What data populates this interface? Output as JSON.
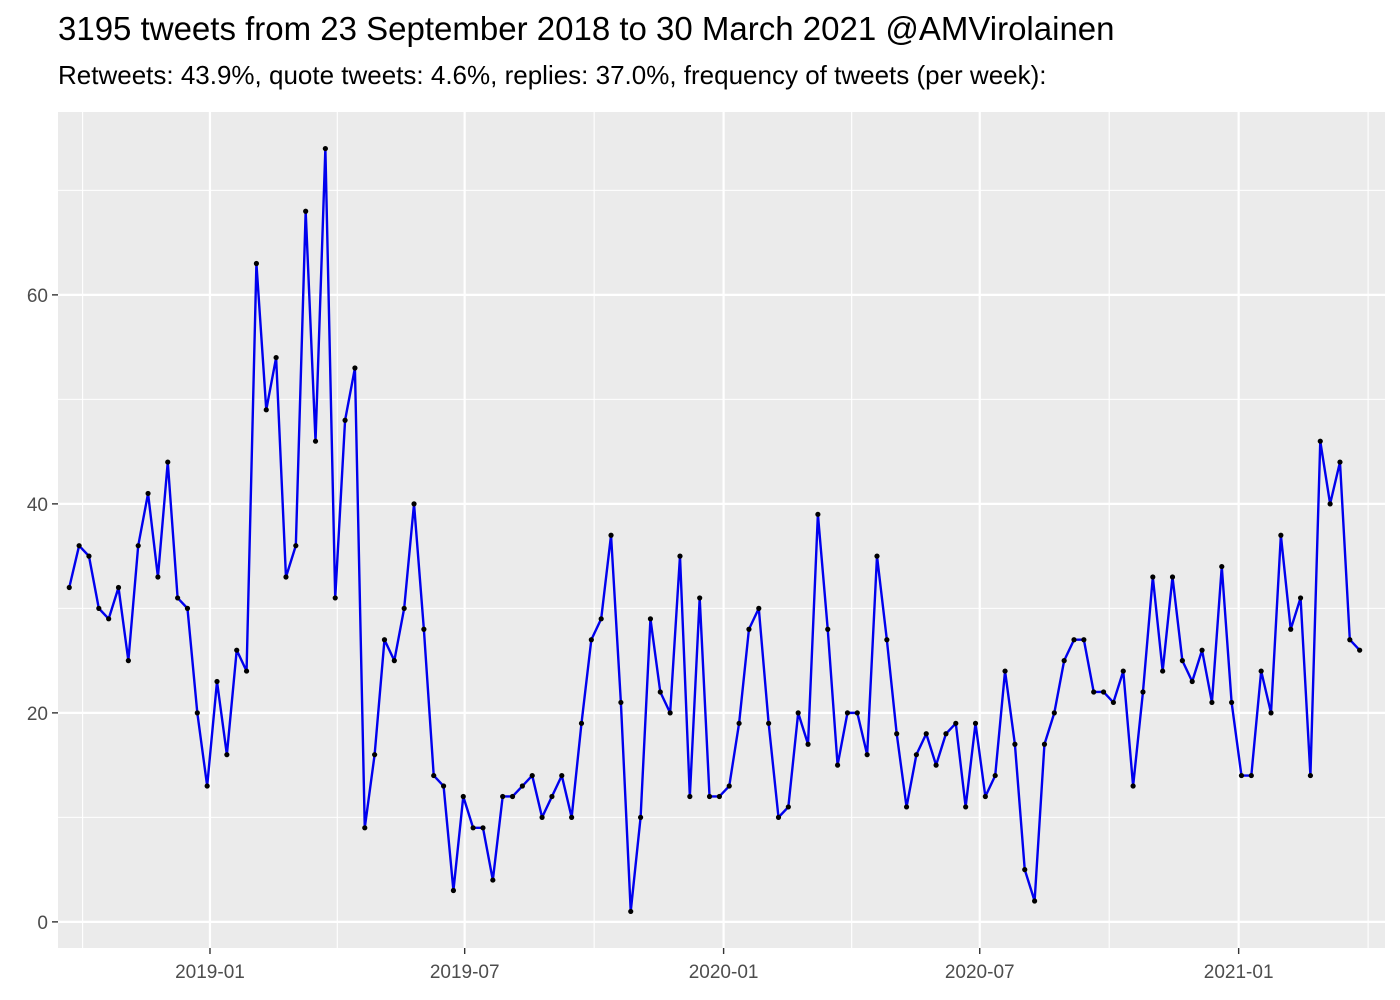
{
  "title": "3195 tweets from 23 September 2018 to 30 March 2021 @AMVirolainen",
  "subtitle": "Retweets: 43.9%, quote tweets: 4.6%, replies: 37.0%, frequency of tweets (per week):",
  "colors": {
    "panel_background": "#ebebeb",
    "grid_major": "#ffffff",
    "line": "#0000ee",
    "points": "#000000",
    "tick_text": "#4d4d4d"
  },
  "chart_data": {
    "type": "line",
    "title": "3195 tweets from 23 September 2018 to 30 March 2021 @AMVirolainen",
    "subtitle": "Retweets: 43.9%, quote tweets: 4.6%, replies: 37.0%, frequency of tweets (per week):",
    "xlabel": "",
    "ylabel": "",
    "x_ticks": [
      "2019-01",
      "2019-07",
      "2020-01",
      "2020-07",
      "2021-01"
    ],
    "y_ticks": [
      0,
      20,
      40,
      60
    ],
    "ylim": [
      -2.5,
      77.5
    ],
    "xlim": [
      "2018-09-15",
      "2021-04-15"
    ],
    "grid": true,
    "series": [
      {
        "x": [
          "2018-09-23",
          "2018-09-30",
          "2018-10-07",
          "2018-10-14",
          "2018-10-21",
          "2018-10-28",
          "2018-11-04",
          "2018-11-11",
          "2018-11-18",
          "2018-11-25",
          "2018-12-02",
          "2018-12-09",
          "2018-12-16",
          "2018-12-23",
          "2018-12-30",
          "2019-01-06",
          "2019-01-13",
          "2019-01-20",
          "2019-01-27",
          "2019-02-03",
          "2019-02-10",
          "2019-02-17",
          "2019-02-24",
          "2019-03-03",
          "2019-03-10",
          "2019-03-17",
          "2019-03-24",
          "2019-03-31",
          "2019-04-07",
          "2019-04-14",
          "2019-04-21",
          "2019-04-28",
          "2019-05-05",
          "2019-05-12",
          "2019-05-19",
          "2019-05-26",
          "2019-06-02",
          "2019-06-09",
          "2019-06-16",
          "2019-06-23",
          "2019-06-30",
          "2019-07-07",
          "2019-07-14",
          "2019-07-21",
          "2019-07-28",
          "2019-08-04",
          "2019-08-11",
          "2019-08-18",
          "2019-08-25",
          "2019-09-01",
          "2019-09-08",
          "2019-09-15",
          "2019-09-22",
          "2019-09-29",
          "2019-10-06",
          "2019-10-13",
          "2019-10-20",
          "2019-10-27",
          "2019-11-03",
          "2019-11-10",
          "2019-11-17",
          "2019-11-24",
          "2019-12-01",
          "2019-12-08",
          "2019-12-15",
          "2019-12-22",
          "2019-12-29",
          "2020-01-05",
          "2020-01-12",
          "2020-01-19",
          "2020-01-26",
          "2020-02-02",
          "2020-02-09",
          "2020-02-16",
          "2020-02-23",
          "2020-03-01",
          "2020-03-08",
          "2020-03-15",
          "2020-03-22",
          "2020-03-29",
          "2020-04-05",
          "2020-04-12",
          "2020-04-19",
          "2020-04-26",
          "2020-05-03",
          "2020-05-10",
          "2020-05-17",
          "2020-05-24",
          "2020-05-31",
          "2020-06-07",
          "2020-06-14",
          "2020-06-21",
          "2020-06-28",
          "2020-07-05",
          "2020-07-12",
          "2020-07-19",
          "2020-07-26",
          "2020-08-02",
          "2020-08-09",
          "2020-08-16",
          "2020-08-23",
          "2020-08-30",
          "2020-09-06",
          "2020-09-13",
          "2020-09-20",
          "2020-09-27",
          "2020-10-04",
          "2020-10-11",
          "2020-10-18",
          "2020-10-25",
          "2020-11-01",
          "2020-11-08",
          "2020-11-15",
          "2020-11-22",
          "2020-11-29",
          "2020-12-06",
          "2020-12-13",
          "2020-12-20",
          "2020-12-27",
          "2021-01-03",
          "2021-01-10",
          "2021-01-17",
          "2021-01-24",
          "2021-01-31",
          "2021-02-07",
          "2021-02-14",
          "2021-02-21",
          "2021-02-28",
          "2021-03-07",
          "2021-03-14",
          "2021-03-21",
          "2021-03-28"
        ],
        "values": [
          32,
          36,
          35,
          30,
          29,
          32,
          25,
          36,
          41,
          33,
          44,
          31,
          30,
          20,
          13,
          23,
          16,
          26,
          24,
          63,
          49,
          54,
          33,
          36,
          68,
          46,
          74,
          31,
          48,
          53,
          9,
          16,
          27,
          25,
          30,
          40,
          28,
          14,
          13,
          3,
          12,
          9,
          9,
          4,
          12,
          12,
          13,
          14,
          10,
          12,
          14,
          10,
          19,
          27,
          29,
          37,
          21,
          1,
          10,
          29,
          22,
          20,
          35,
          12,
          31,
          12,
          12,
          13,
          19,
          28,
          30,
          19,
          10,
          11,
          20,
          17,
          39,
          28,
          15,
          20,
          20,
          16,
          35,
          27,
          18,
          11,
          16,
          18,
          15,
          18,
          19,
          11,
          19,
          12,
          14,
          24,
          17,
          5,
          2,
          17,
          20,
          25,
          27,
          27,
          22,
          22,
          21,
          24,
          13,
          22,
          33,
          24,
          33,
          25,
          23,
          26,
          21,
          34,
          21,
          14,
          14,
          24,
          20,
          37,
          28,
          31,
          14,
          46,
          40,
          44,
          27,
          26
        ]
      }
    ]
  }
}
